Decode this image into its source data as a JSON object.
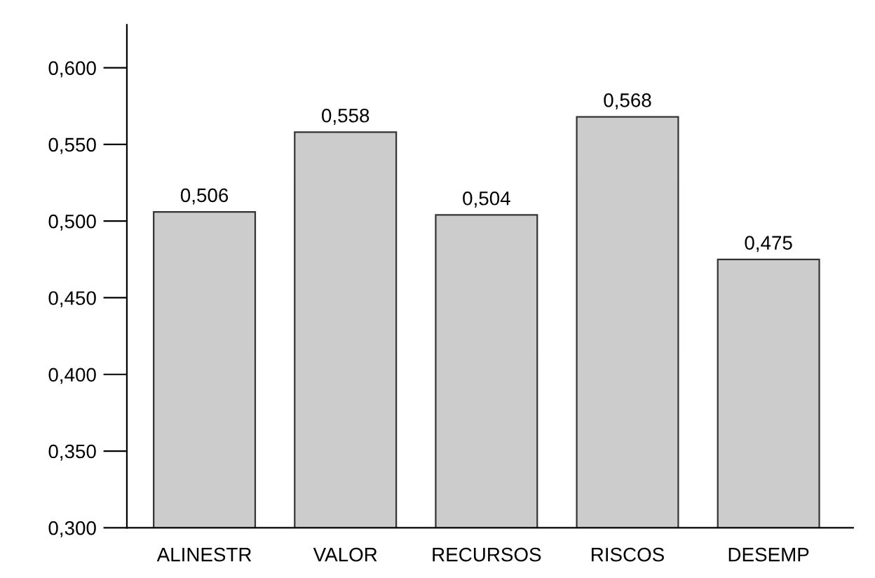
{
  "chart_data": {
    "type": "bar",
    "categories": [
      "ALINESTR",
      "VALOR",
      "RECURSOS",
      "RISCOS",
      "DESEMP"
    ],
    "values": [
      0.506,
      0.558,
      0.504,
      0.568,
      0.475
    ],
    "value_labels": [
      "0,506",
      "0,558",
      "0,504",
      "0,568",
      "0,475"
    ],
    "color": "#cccccc",
    "ylim": [
      0.3,
      0.628
    ],
    "yticks": [
      {
        "value": 0.3,
        "label": "0,300"
      },
      {
        "value": 0.35,
        "label": "0,350"
      },
      {
        "value": 0.4,
        "label": "0,400"
      },
      {
        "value": 0.45,
        "label": "0,450"
      },
      {
        "value": 0.5,
        "label": "0,500"
      },
      {
        "value": 0.55,
        "label": "0,550"
      },
      {
        "value": 0.6,
        "label": "0,600"
      }
    ],
    "grid": false
  }
}
